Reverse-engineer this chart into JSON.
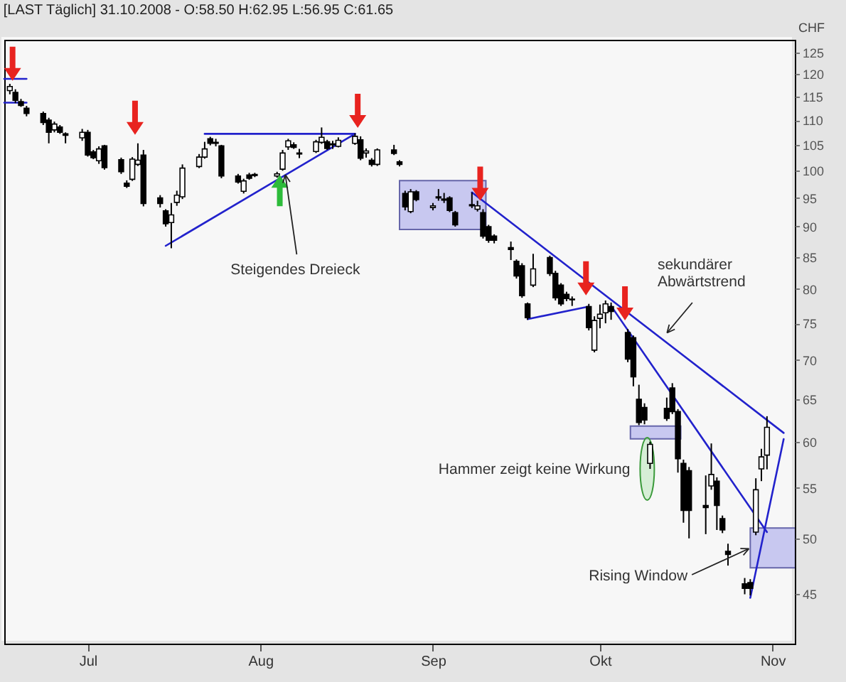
{
  "chart_data": {
    "type": "candlestick",
    "title": "[LAST Täglich] 31.10.2008 - O:58.50 H:62.95 L:56.95 C:61.65",
    "ylabel": "CHF",
    "x": [
      "2008-06-17",
      "2008-06-18",
      "2008-06-19",
      "2008-06-20",
      "2008-06-23",
      "2008-06-24",
      "2008-06-25",
      "2008-06-26",
      "2008-06-27",
      "2008-06-30",
      "2008-07-01",
      "2008-07-02",
      "2008-07-03",
      "2008-07-04",
      "2008-07-07",
      "2008-07-08",
      "2008-07-09",
      "2008-07-10",
      "2008-07-11",
      "2008-07-14",
      "2008-07-15",
      "2008-07-16",
      "2008-07-17",
      "2008-07-18",
      "2008-07-21",
      "2008-07-22",
      "2008-07-23",
      "2008-07-24",
      "2008-07-25",
      "2008-07-28",
      "2008-07-29",
      "2008-07-30",
      "2008-07-31",
      "2008-08-04",
      "2008-08-05",
      "2008-08-06",
      "2008-08-07",
      "2008-08-08",
      "2008-08-11",
      "2008-08-12",
      "2008-08-13",
      "2008-08-14",
      "2008-08-15",
      "2008-08-18",
      "2008-08-19",
      "2008-08-20",
      "2008-08-21",
      "2008-08-22",
      "2008-08-25",
      "2008-08-26",
      "2008-08-27",
      "2008-08-28",
      "2008-08-29",
      "2008-09-01",
      "2008-09-02",
      "2008-09-03",
      "2008-09-04",
      "2008-09-05",
      "2008-09-08",
      "2008-09-09",
      "2008-09-10",
      "2008-09-11",
      "2008-09-12",
      "2008-09-15",
      "2008-09-16",
      "2008-09-17",
      "2008-09-18",
      "2008-09-19",
      "2008-09-22",
      "2008-09-23",
      "2008-09-24",
      "2008-09-25",
      "2008-09-26",
      "2008-09-29",
      "2008-09-30",
      "2008-10-01",
      "2008-10-02",
      "2008-10-03",
      "2008-10-06",
      "2008-10-07",
      "2008-10-08",
      "2008-10-09",
      "2008-10-10",
      "2008-10-13",
      "2008-10-14",
      "2008-10-15",
      "2008-10-16",
      "2008-10-17",
      "2008-10-20",
      "2008-10-21",
      "2008-10-22",
      "2008-10-23",
      "2008-10-24",
      "2008-10-27",
      "2008-10-28",
      "2008-10-29",
      "2008-10-30",
      "2008-10-31"
    ],
    "ohlc": [
      [
        116.3,
        117.8,
        115.5,
        117.2
      ],
      [
        115.9,
        116.6,
        113.6,
        114.2
      ],
      [
        113.9,
        114.5,
        112.8,
        113.1
      ],
      [
        112.5,
        113,
        110.8,
        111.4
      ],
      [
        111.4,
        111.8,
        109,
        109.5
      ],
      [
        110,
        110.5,
        105.3,
        107.5
      ],
      [
        108,
        109.7,
        107.5,
        109.2
      ],
      [
        108.6,
        109,
        107.2,
        107.5
      ],
      [
        107.2,
        107.5,
        105.3,
        106.9
      ],
      [
        106.4,
        108.2,
        105.8,
        107.5
      ],
      [
        107.5,
        108,
        102.7,
        103
      ],
      [
        103.6,
        104,
        102.2,
        102.5
      ],
      [
        101.9,
        104.7,
        101.3,
        104.2
      ],
      [
        104.8,
        105,
        100.2,
        100.6
      ],
      [
        102.1,
        102.5,
        99.4,
        99.8
      ],
      [
        97.7,
        98.2,
        96.8,
        97.1
      ],
      [
        98.4,
        102.6,
        98.1,
        102.2
      ],
      [
        101.2,
        105.3,
        100.9,
        102
      ],
      [
        103,
        104,
        93.5,
        94
      ],
      [
        95,
        95.5,
        93.3,
        94
      ],
      [
        92.7,
        93,
        90,
        90.5
      ],
      [
        90.7,
        94.1,
        86.4,
        92
      ],
      [
        94.2,
        96.3,
        93.6,
        95.5
      ],
      [
        95.2,
        101.2,
        94.8,
        100.5
      ],
      [
        100.8,
        103.2,
        100.5,
        102.6
      ],
      [
        102.6,
        105.6,
        102.3,
        104.2
      ],
      [
        106.2,
        106.6,
        104.9,
        105.3
      ],
      [
        105.5,
        106.2,
        104.7,
        105.3
      ],
      [
        104.8,
        105,
        98.6,
        99
      ],
      [
        99,
        99.4,
        97.6,
        97.9
      ],
      [
        96.2,
        98.5,
        95.8,
        98.1
      ],
      [
        99.2,
        99.6,
        98.3,
        98.6
      ],
      [
        99.3,
        99.6,
        98.8,
        99.1
      ],
      [
        99,
        99.8,
        98.7,
        99.4
      ],
      [
        100.3,
        104,
        100,
        103.4
      ],
      [
        104.6,
        106.2,
        104,
        105.8
      ],
      [
        105,
        105.5,
        104.2,
        104.5
      ],
      [
        103.4,
        104.2,
        102.4,
        103.2
      ],
      [
        103.7,
        106,
        103.4,
        105.6
      ],
      [
        105.5,
        108.5,
        105.2,
        106.5
      ],
      [
        105.6,
        106,
        104,
        104.3
      ],
      [
        105.2,
        105.8,
        104.2,
        105
      ],
      [
        104.7,
        106.5,
        104.5,
        105.9
      ],
      [
        105.3,
        107.3,
        105,
        106.7
      ],
      [
        106,
        106.7,
        102,
        102.4
      ],
      [
        103.4,
        104.3,
        102.5,
        103.8
      ],
      [
        102,
        102.4,
        100.8,
        101.2
      ],
      [
        101.2,
        104.3,
        100.9,
        104
      ],
      [
        104,
        105,
        103,
        103.3
      ],
      [
        101.7,
        102,
        100.8,
        101.2
      ],
      [
        95.8,
        96.3,
        92.8,
        93.4
      ],
      [
        92.6,
        96.6,
        92.3,
        96.1
      ],
      [
        96.1,
        96.4,
        94.4,
        94.7
      ],
      [
        93.3,
        94.1,
        92.8,
        93.6
      ],
      [
        95.2,
        96.6,
        94.5,
        95
      ],
      [
        94.6,
        95.9,
        94.1,
        94.8
      ],
      [
        95,
        95.3,
        92.5,
        92.8
      ],
      [
        92.4,
        92.7,
        90,
        90.3
      ],
      [
        93.8,
        96,
        93.2,
        93.6
      ],
      [
        93,
        94.5,
        92.6,
        93.6
      ],
      [
        92.4,
        93,
        88,
        88.4
      ],
      [
        90,
        90.3,
        87.3,
        87.7
      ],
      [
        88.4,
        88.7,
        87.2,
        87.7
      ],
      [
        86.5,
        87.5,
        84.5,
        86.2
      ],
      [
        84.3,
        84.6,
        81.6,
        82
      ],
      [
        83.6,
        84,
        78.7,
        79
      ],
      [
        77.8,
        78,
        75.5,
        75.8
      ],
      [
        80.6,
        85.5,
        80.3,
        83.1
      ],
      [
        84.9,
        85.2,
        82,
        82.4
      ],
      [
        82.4,
        82.8,
        78.3,
        78.7
      ],
      [
        80.6,
        80.9,
        77.5,
        77.8
      ],
      [
        79.2,
        79.6,
        78.2,
        78.6
      ],
      [
        78.5,
        78.9,
        77.5,
        78.4
      ],
      [
        77.4,
        77.8,
        74,
        74.4
      ],
      [
        71.3,
        76,
        71,
        75.4
      ],
      [
        75.7,
        77.7,
        74.3,
        76.3
      ],
      [
        76.5,
        78.3,
        75,
        77.8
      ],
      [
        77.4,
        78,
        75.5,
        76.7
      ],
      [
        73.7,
        74.2,
        69.7,
        70.1
      ],
      [
        73,
        73.3,
        66.6,
        67.8
      ],
      [
        65,
        66.8,
        61.9,
        62.2
      ],
      [
        64,
        64.5,
        62,
        62.5
      ],
      [
        57.6,
        60,
        57,
        59.7
      ],
      [
        63.9,
        65.2,
        62.4,
        62.7
      ],
      [
        66.4,
        67,
        63.2,
        63.5
      ],
      [
        63.5,
        63.8,
        56.6,
        58.1
      ],
      [
        57.6,
        58,
        51.5,
        52.7
      ],
      [
        56.8,
        57.2,
        50,
        52.7
      ],
      [
        53.2,
        56.3,
        50.4,
        53
      ],
      [
        55.2,
        59.8,
        54.8,
        56.4
      ],
      [
        55.7,
        56.1,
        50.8,
        53.2
      ],
      [
        51.9,
        52.2,
        50.5,
        50.8
      ],
      [
        48.8,
        49.5,
        47.5,
        48.5
      ],
      [
        45.9,
        46.4,
        45,
        45.5
      ],
      [
        46,
        46.3,
        44.9,
        45.5
      ],
      [
        50.6,
        56,
        50.3,
        54.8
      ],
      [
        57,
        59.2,
        55.7,
        58.3
      ],
      [
        58.5,
        62.95,
        56.95,
        61.65
      ]
    ],
    "series": [
      {
        "type": "line",
        "color": "#2222cc",
        "x": [
          "2008-06-16",
          "2008-06-20"
        ],
        "values": [
          118.9,
          118.9
        ]
      },
      {
        "type": "line",
        "color": "#2222cc",
        "x": [
          "2008-06-16",
          "2008-06-20"
        ],
        "values": [
          113.7,
          113.7
        ]
      },
      {
        "type": "line",
        "color": "#2222cc",
        "x": [
          "2008-07-22",
          "2008-08-18"
        ],
        "values": [
          107.2,
          107.2
        ]
      },
      {
        "type": "line",
        "color": "#2222cc",
        "x": [
          "2008-07-15",
          "2008-08-18"
        ],
        "values": [
          86.8,
          107.2
        ]
      },
      {
        "type": "line",
        "color": "#2222cc",
        "x": [
          "2008-09-08",
          "2008-11-03"
        ],
        "values": [
          96,
          61
        ]
      },
      {
        "type": "line",
        "color": "#2222cc",
        "x": [
          "2008-10-03",
          "2008-10-31"
        ],
        "values": [
          77.5,
          50.6
        ]
      },
      {
        "type": "line",
        "color": "#2222cc",
        "x": [
          "2008-10-28",
          "2008-11-03"
        ],
        "values": [
          44.7,
          60.3
        ]
      },
      {
        "type": "line",
        "color": "#2222cc",
        "x": [
          "2008-09-18",
          "2008-09-29"
        ],
        "values": [
          75.6,
          77.4
        ]
      }
    ],
    "annotations": [
      {
        "text": "Steigendes Dreieck",
        "x": "2008-08-06",
        "y": 98.7
      },
      "sekundärer\nAbwärtstrend",
      {
        "text": "Hammer zeigt keine Wirkung",
        "x": "2008-10-10",
        "y": 57.5
      },
      "Rising Window"
    ],
    "log": true,
    "grid": false,
    "ylim": [
      41,
      128
    ],
    "yticks": [
      45,
      50,
      55,
      60,
      65,
      70,
      75,
      80,
      85,
      90,
      95,
      100,
      105,
      110,
      115,
      120,
      125
    ],
    "xlim": [
      "2008-06-16",
      "2008-11-05"
    ],
    "xticks": [
      {
        "value": "2008-07-01",
        "label": "Jul"
      },
      {
        "value": "2008-08-01",
        "label": "Aug"
      },
      {
        "value": "2008-09-01",
        "label": "Sep"
      },
      {
        "value": "2008-10-01",
        "label": "Okt"
      },
      {
        "value": "2008-11-01",
        "label": "Nov"
      }
    ]
  }
}
